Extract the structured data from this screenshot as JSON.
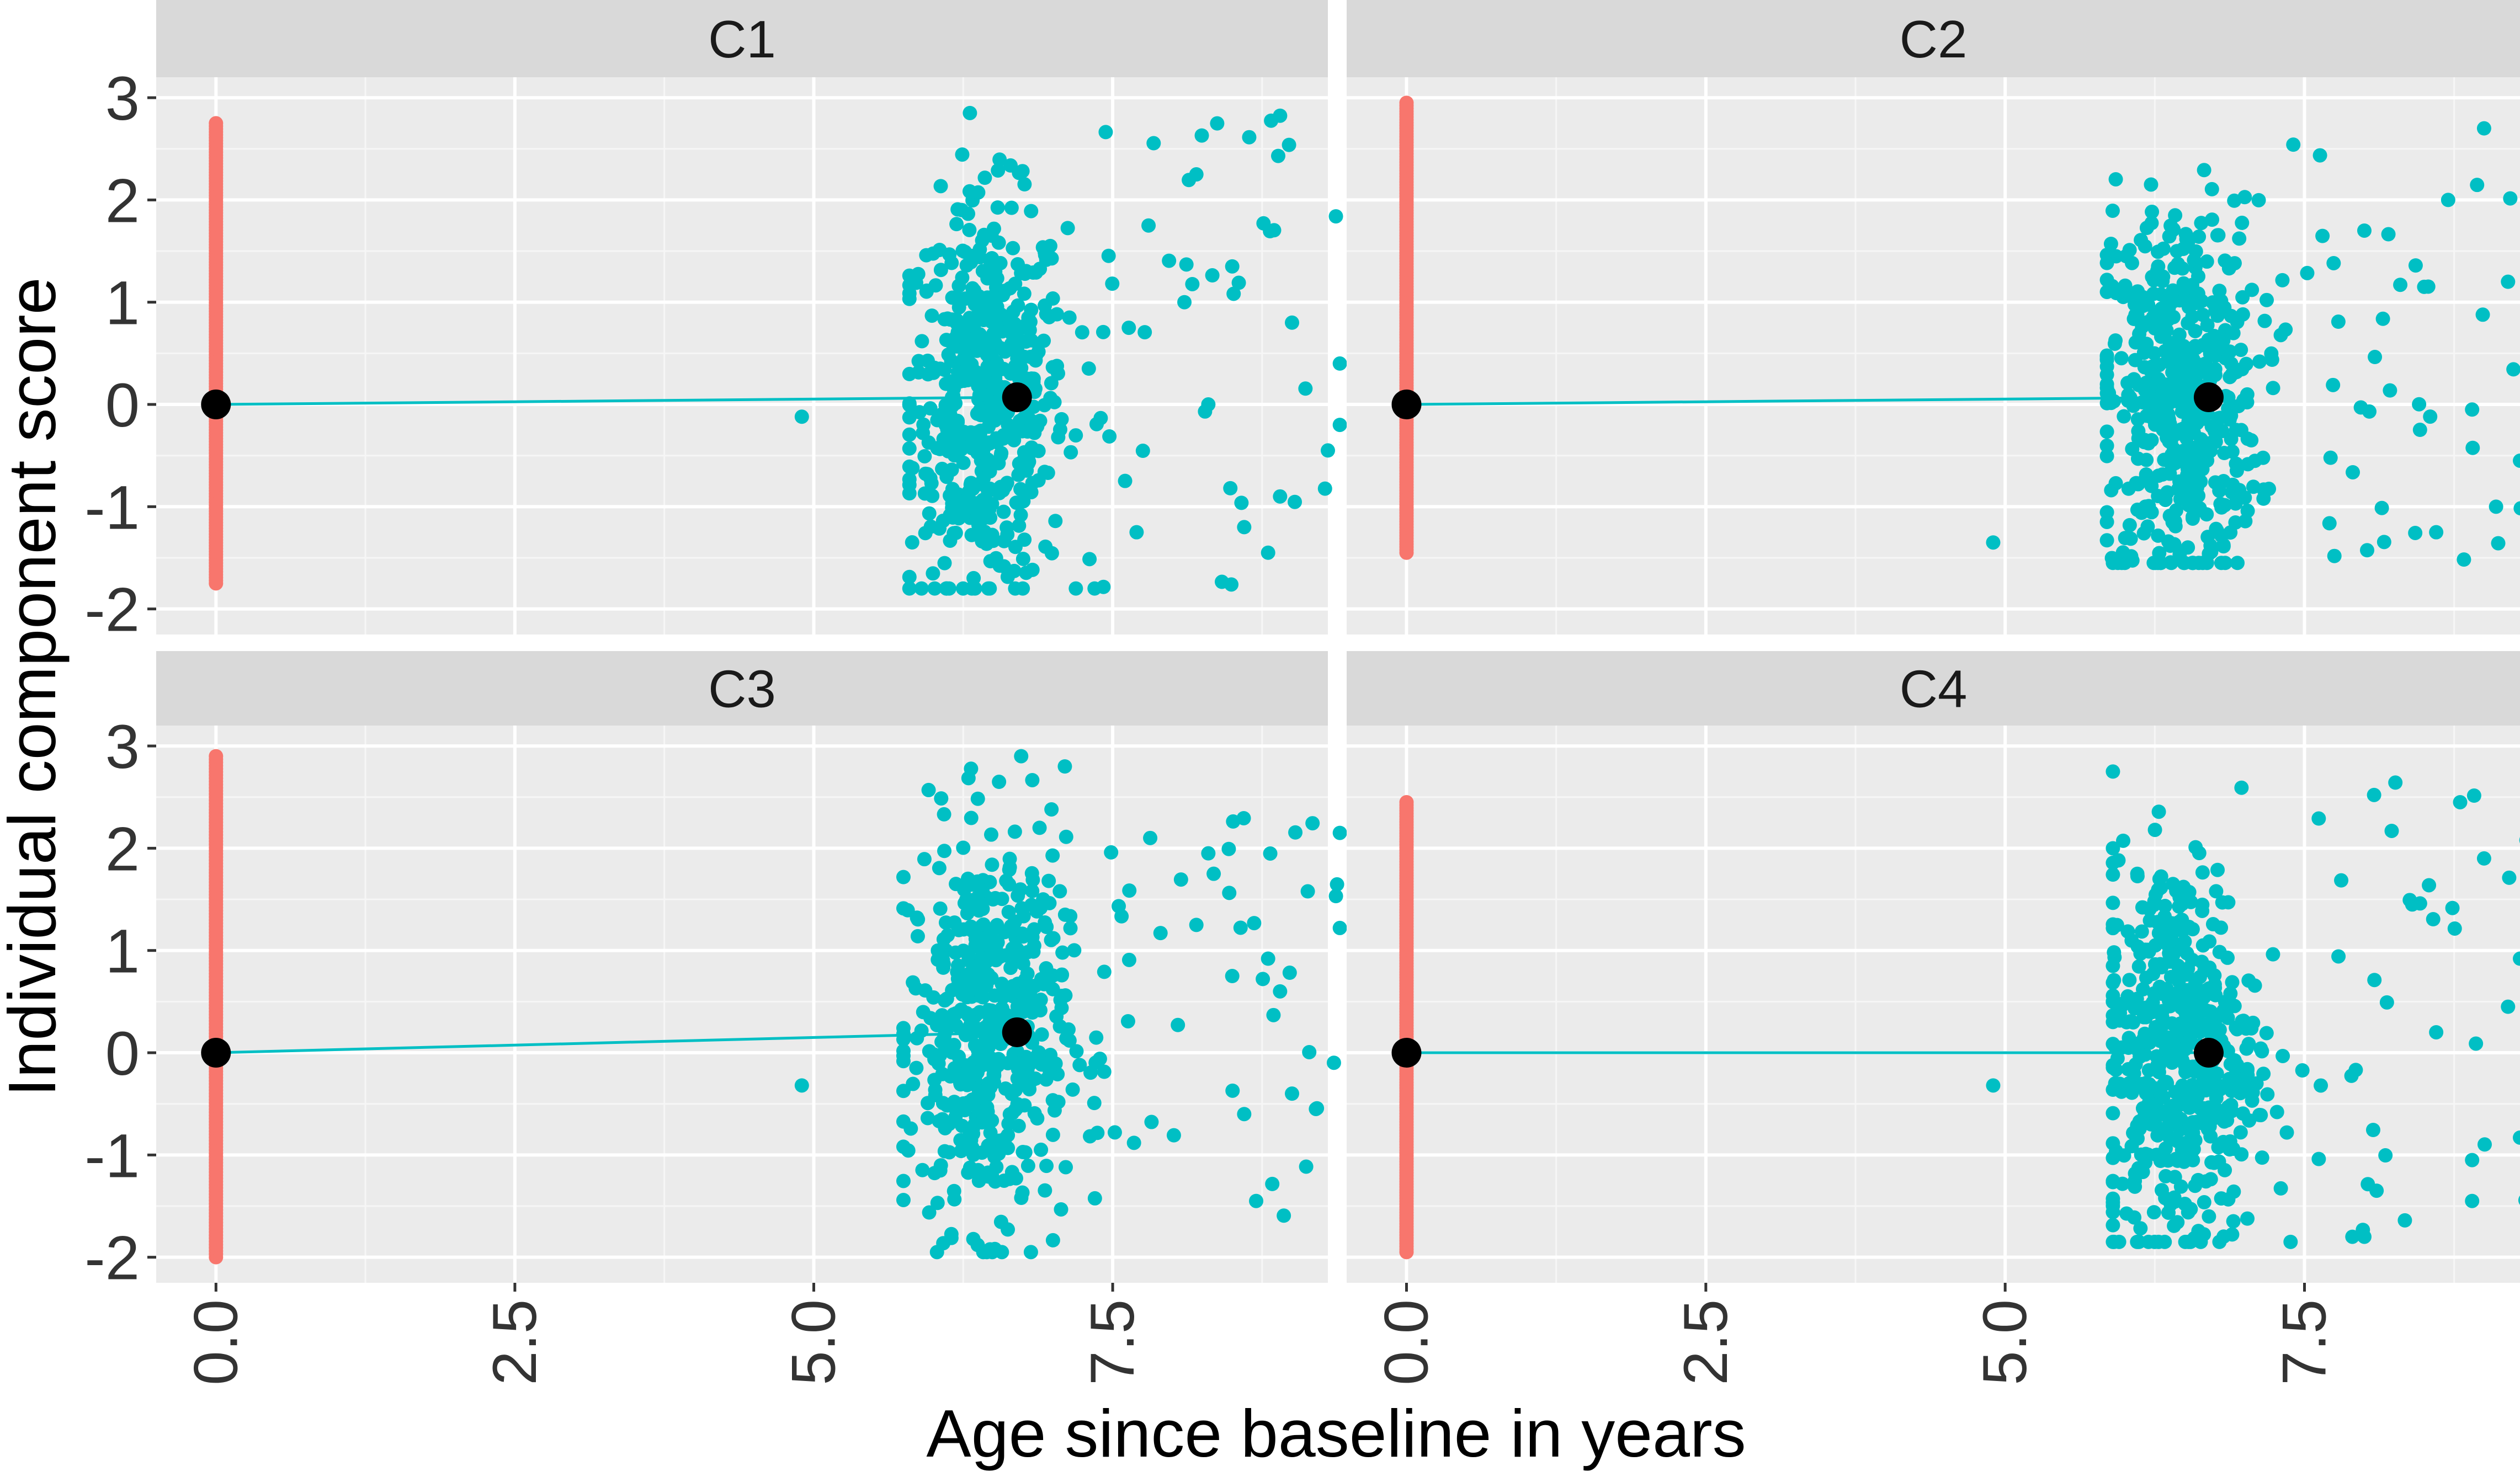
{
  "chart_data": {
    "type": "scatter",
    "xlabel": "Age since baseline in years",
    "ylabel": "Individual component score",
    "xlim": [
      -0.5,
      9.3
    ],
    "ylim": [
      -2.25,
      3.2
    ],
    "x_ticks": [
      0,
      2.5,
      5,
      7.5
    ],
    "x_tick_labels": [
      "0.0",
      "2.5",
      "5.0",
      "7.5"
    ],
    "y_ticks": [
      -2,
      -1,
      0,
      1,
      2,
      3
    ],
    "y_tick_labels": [
      "-2",
      "-1",
      "0",
      "1",
      "2",
      "3"
    ],
    "grid": true,
    "legend": "none",
    "colors": {
      "baseline": "#F8766D",
      "followup": "#00BFC4",
      "mean": "#000000",
      "panel_bg": "#EBEBEB",
      "strip_bg": "#D9D9D9"
    },
    "facets": [
      {
        "name": "C1",
        "baseline": {
          "x": 0,
          "y_range": [
            -1.75,
            2.75
          ]
        },
        "followup": {
          "x_range": [
            5.8,
            9.4
          ],
          "y_range": [
            -1.8,
            2.85
          ]
        },
        "mean_line": {
          "x": [
            0,
            6.7
          ],
          "y": [
            0,
            0.07
          ]
        },
        "followup_points": [
          {
            "x": 4.9,
            "y": -0.12
          },
          {
            "x": 8.2,
            "y": 2.25
          },
          {
            "x": 8.5,
            "y": 1.35
          },
          {
            "x": 9.4,
            "y": 0.4
          },
          {
            "x": 9.4,
            "y": -0.2
          },
          {
            "x": 9.0,
            "y": 0.8
          },
          {
            "x": 8.8,
            "y": -1.45
          },
          {
            "x": 8.9,
            "y": -0.9
          },
          {
            "x": 7.8,
            "y": 1.75
          },
          {
            "x": 8.1,
            "y": 1.0
          },
          {
            "x": 8.3,
            "y": 0.0
          },
          {
            "x": 9.3,
            "y": -0.45
          },
          {
            "x": 8.6,
            "y": -1.2
          },
          {
            "x": 7.7,
            "y": -1.25
          }
        ]
      },
      {
        "name": "C2",
        "baseline": {
          "x": 0,
          "y_range": [
            -1.45,
            2.95
          ]
        },
        "followup": {
          "x_range": [
            5.85,
            9.6
          ],
          "y_range": [
            -1.55,
            2.95
          ]
        },
        "mean_line": {
          "x": [
            0,
            6.7
          ],
          "y": [
            0,
            0.07
          ]
        },
        "followup_points": [
          {
            "x": 4.9,
            "y": -1.35
          },
          {
            "x": 9.0,
            "y": 2.7
          },
          {
            "x": 9.5,
            "y": 1.7
          },
          {
            "x": 9.6,
            "y": 0.65
          },
          {
            "x": 8.7,
            "y": 2.0
          },
          {
            "x": 9.2,
            "y": 1.2
          },
          {
            "x": 8.5,
            "y": 1.15
          },
          {
            "x": 9.3,
            "y": -0.55
          },
          {
            "x": 8.6,
            "y": -1.25
          },
          {
            "x": 9.1,
            "y": -1.0
          },
          {
            "x": 8.0,
            "y": 1.7
          },
          {
            "x": 8.9,
            "y": -0.05
          },
          {
            "x": 5.9,
            "y": -1.55
          },
          {
            "x": 8.3,
            "y": 1.17
          }
        ]
      },
      {
        "name": "C3",
        "baseline": {
          "x": 0,
          "y_range": [
            -2.0,
            2.9
          ]
        },
        "followup": {
          "x_range": [
            5.75,
            9.4
          ],
          "y_range": [
            -1.95,
            2.9
          ]
        },
        "mean_line": {
          "x": [
            0,
            6.7
          ],
          "y": [
            0,
            0.2
          ]
        },
        "followup_points": [
          {
            "x": 4.9,
            "y": -0.32
          },
          {
            "x": 9.4,
            "y": 2.15
          },
          {
            "x": 9.4,
            "y": 1.22
          },
          {
            "x": 8.3,
            "y": 1.95
          },
          {
            "x": 8.8,
            "y": 0.92
          },
          {
            "x": 8.9,
            "y": 0.6
          },
          {
            "x": 9.2,
            "y": -0.55
          },
          {
            "x": 9.0,
            "y": -0.4
          },
          {
            "x": 8.7,
            "y": -1.45
          },
          {
            "x": 8.6,
            "y": -0.6
          },
          {
            "x": 7.1,
            "y": 2.8
          },
          {
            "x": 8.2,
            "y": 1.25
          },
          {
            "x": 8.5,
            "y": 0.75
          }
        ]
      },
      {
        "name": "C4",
        "baseline": {
          "x": 0,
          "y_range": [
            -1.95,
            2.45
          ]
        },
        "followup": {
          "x_range": [
            5.9,
            9.6
          ],
          "y_range": [
            -1.85,
            2.75
          ]
        },
        "mean_line": {
          "x": [
            0,
            6.7
          ],
          "y": [
            0,
            0.0
          ]
        },
        "followup_points": [
          {
            "x": 4.9,
            "y": -0.32
          },
          {
            "x": 8.8,
            "y": 2.45
          },
          {
            "x": 9.0,
            "y": 1.9
          },
          {
            "x": 9.6,
            "y": 0.95
          },
          {
            "x": 9.6,
            "y": 0.7
          },
          {
            "x": 9.3,
            "y": 0.92
          },
          {
            "x": 9.3,
            "y": -0.83
          },
          {
            "x": 9.4,
            "y": -0.92
          },
          {
            "x": 8.9,
            "y": -1.05
          },
          {
            "x": 8.9,
            "y": -1.45
          },
          {
            "x": 9.2,
            "y": 0.45
          },
          {
            "x": 8.6,
            "y": 0.2
          },
          {
            "x": 7.9,
            "y": -1.8
          },
          {
            "x": 8.0,
            "y": -1.8
          },
          {
            "x": 8.4,
            "y": 1.45
          }
        ]
      }
    ]
  }
}
